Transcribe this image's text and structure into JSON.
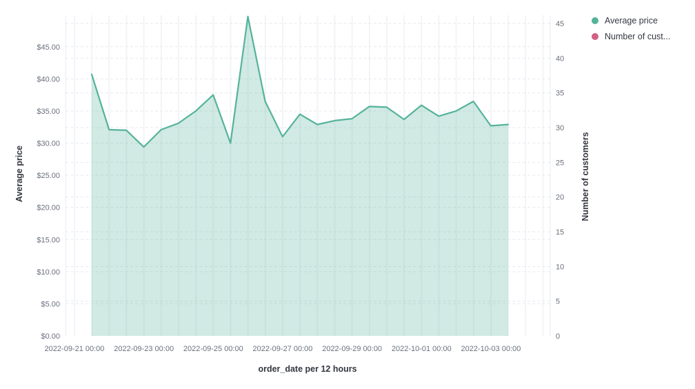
{
  "chart_data": {
    "type": "area",
    "title": "",
    "x_axis": {
      "title": "order_date per 12 hours",
      "tick_labels": [
        "2022-09-21 00:00",
        "2022-09-23 00:00",
        "2022-09-25 00:00",
        "2022-09-27 00:00",
        "2022-09-29 00:00",
        "2022-10-01 00:00",
        "2022-10-03 00:00"
      ]
    },
    "left_y_axis": {
      "title": "Average price",
      "tick_labels": [
        "$0.00",
        "$5.00",
        "$10.00",
        "$15.00",
        "$20.00",
        "$25.00",
        "$30.00",
        "$35.00",
        "$40.00",
        "$45.00"
      ],
      "min": 0,
      "max": 50,
      "tick_step": 5
    },
    "right_y_axis": {
      "title": "Number of customers",
      "tick_labels": [
        "0",
        "5",
        "10",
        "15",
        "20",
        "25",
        "30",
        "35",
        "40",
        "45"
      ],
      "min": 0,
      "max": 45,
      "tick_step": 5
    },
    "legend": {
      "position": "top-right",
      "items": [
        {
          "label": "Average price",
          "color": "#54B399"
        },
        {
          "label": "Number of cust...",
          "color": "#D36086"
        }
      ]
    },
    "series": [
      {
        "name": "Average price",
        "type": "area",
        "axis": "left",
        "color": "#54B399",
        "x": [
          "2022-09-21 00:00",
          "2022-09-21 12:00",
          "2022-09-22 00:00",
          "2022-09-22 12:00",
          "2022-09-23 00:00",
          "2022-09-23 12:00",
          "2022-09-24 00:00",
          "2022-09-24 12:00",
          "2022-09-25 00:00",
          "2022-09-25 12:00",
          "2022-09-26 00:00",
          "2022-09-26 12:00",
          "2022-09-27 00:00",
          "2022-09-27 12:00",
          "2022-09-28 00:00",
          "2022-09-28 12:00",
          "2022-09-29 00:00",
          "2022-09-29 12:00",
          "2022-09-30 00:00",
          "2022-09-30 12:00",
          "2022-10-01 00:00",
          "2022-10-01 12:00",
          "2022-10-02 00:00",
          "2022-10-02 12:00",
          "2022-10-03 00:00"
        ],
        "values": [
          40.7,
          32.1,
          32.0,
          29.4,
          32.1,
          33.1,
          35.0,
          37.5,
          30.0,
          49.7,
          36.5,
          31.0,
          34.5,
          32.9,
          33.5,
          33.8,
          35.7,
          35.6,
          33.7,
          35.9,
          34.2,
          35.0,
          36.5,
          32.7,
          32.9
        ]
      },
      {
        "name": "Number of customers",
        "type": "line",
        "axis": "right",
        "color": "#D36086",
        "x": [],
        "values": []
      }
    ]
  },
  "styles": {
    "background": "#ffffff",
    "tick_label_color": "#69707d",
    "axis_title_color": "#343741",
    "legend_text_color": "#343741",
    "h_gridline_color": "#e6e9ee",
    "v_gridline_color": "#f1f3f6",
    "area_line_color": "#54B399",
    "area_fill_color": "rgba(84,179,153,0.27)"
  }
}
